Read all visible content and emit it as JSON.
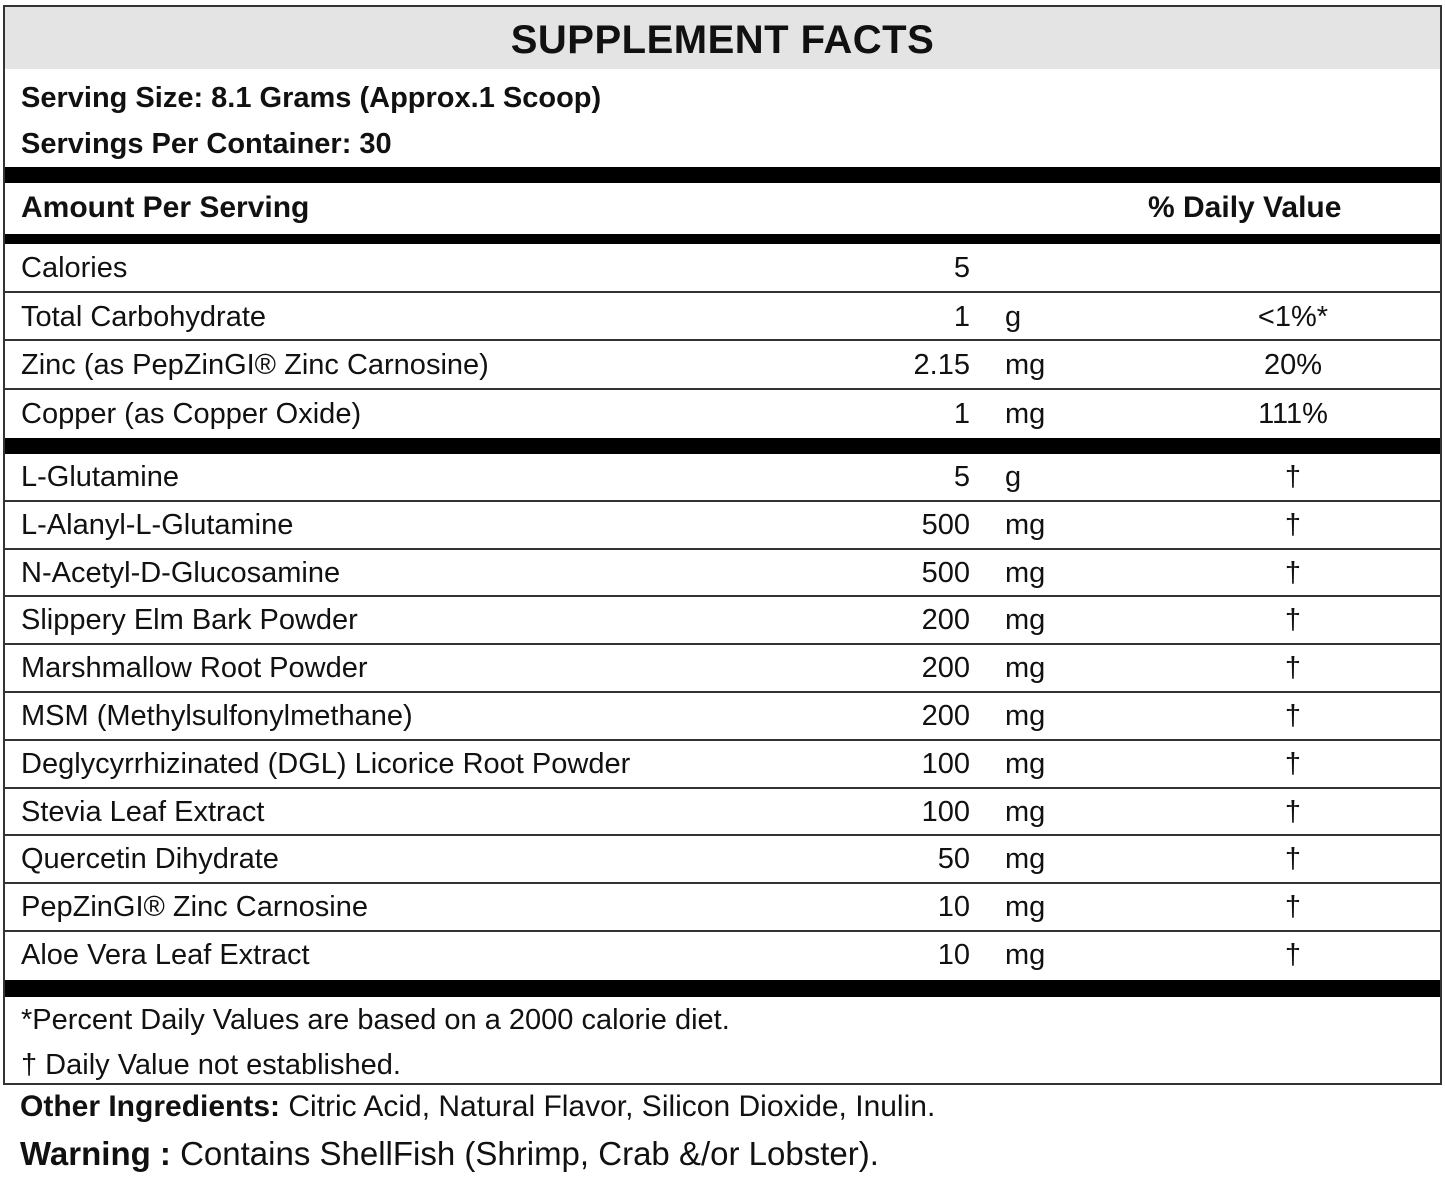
{
  "title": "SUPPLEMENT FACTS",
  "serving_size": "Serving Size: 8.1 Grams (Approx.1 Scoop)",
  "servings_per_container": "Servings Per Container: 30",
  "header": {
    "amount": "Amount Per Serving",
    "dv": "% Daily Value"
  },
  "nutrients": [
    {
      "name": "Calories",
      "amount": "5",
      "unit": "",
      "dv": ""
    },
    {
      "name": "Total Carbohydrate",
      "amount": "1",
      "unit": "g",
      "dv": "<1%*"
    },
    {
      "name": "Zinc (as PepZinGI® Zinc Carnosine)",
      "amount": "2.15",
      "unit": "mg",
      "dv": "20%"
    },
    {
      "name": "Copper (as Copper Oxide)",
      "amount": "1",
      "unit": "mg",
      "dv": "111%"
    }
  ],
  "ingredients": [
    {
      "name": "L-Glutamine",
      "amount": "5",
      "unit": "g",
      "dv": "†"
    },
    {
      "name": "L-Alanyl-L-Glutamine",
      "amount": "500",
      "unit": "mg",
      "dv": "†"
    },
    {
      "name": "N-Acetyl-D-Glucosamine",
      "amount": "500",
      "unit": "mg",
      "dv": "†"
    },
    {
      "name": "Slippery Elm Bark Powder",
      "amount": "200",
      "unit": "mg",
      "dv": "†"
    },
    {
      "name": "Marshmallow Root Powder",
      "amount": "200",
      "unit": "mg",
      "dv": "†"
    },
    {
      "name": "MSM (Methylsulfonylmethane)",
      "amount": "200",
      "unit": "mg",
      "dv": "†"
    },
    {
      "name": "Deglycyrrhizinated (DGL) Licorice Root Powder",
      "amount": "100",
      "unit": "mg",
      "dv": "†"
    },
    {
      "name": "Stevia Leaf Extract",
      "amount": "100",
      "unit": "mg",
      "dv": "†"
    },
    {
      "name": "Quercetin Dihydrate",
      "amount": "50",
      "unit": "mg",
      "dv": "†"
    },
    {
      "name": "PepZinGI® Zinc Carnosine",
      "amount": "10",
      "unit": "mg",
      "dv": "†"
    },
    {
      "name": "Aloe Vera Leaf Extract",
      "amount": "10",
      "unit": "mg",
      "dv": "†"
    }
  ],
  "footnotes": [
    "*Percent Daily Values are based on a 2000 calorie diet.",
    "† Daily Value not established."
  ],
  "other_ingredients": {
    "label": "Other Ingredients:",
    "text": " Citric Acid, Natural Flavor, Silicon Dioxide, Inulin."
  },
  "warning": {
    "label": "Warning :",
    "text": " Contains ShellFish (Shrimp, Crab &/or Lobster)."
  },
  "colors": {
    "title_bg": "#e4e4e4",
    "rule": "#000000"
  }
}
